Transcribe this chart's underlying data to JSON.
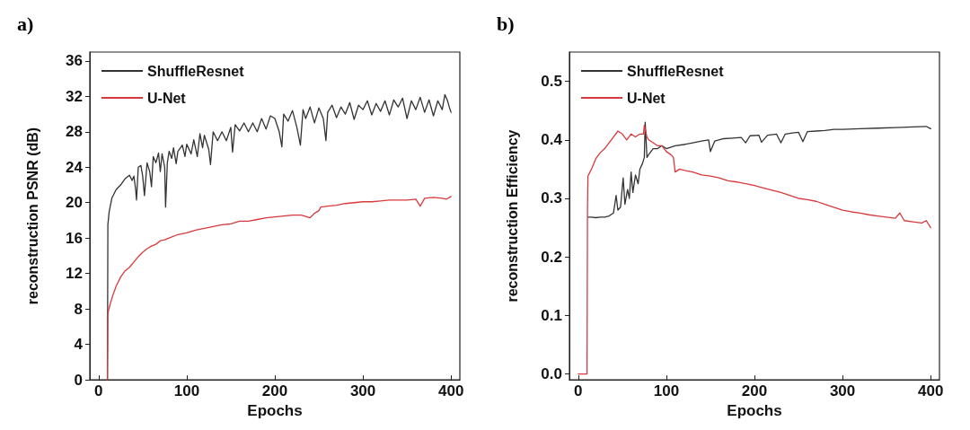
{
  "chart_data": [
    {
      "type": "line",
      "title": "a)",
      "xlabel": "Epochs",
      "ylabel": "reconstruction PSNR (dB)",
      "xlim": [
        -10,
        410
      ],
      "xticks": [
        0,
        100,
        200,
        300,
        400
      ],
      "ylim": [
        0,
        37
      ],
      "yticks": [
        0,
        4,
        8,
        12,
        16,
        20,
        24,
        28,
        32,
        36
      ],
      "legend": "top left",
      "marker": "none",
      "line_style": "solid",
      "series": [
        {
          "name": "ShuffleResnet",
          "color": "#333333",
          "x": [
            10,
            10.5,
            12,
            15,
            20,
            25,
            30,
            35,
            38,
            40,
            42,
            43,
            45,
            48,
            50,
            52,
            55,
            58,
            60,
            62,
            65,
            68,
            70,
            72,
            75,
            76,
            78,
            80,
            83,
            85,
            88,
            90,
            95,
            98,
            100,
            105,
            108,
            112,
            115,
            118,
            120,
            125,
            127,
            130,
            135,
            140,
            145,
            150,
            152,
            155,
            160,
            165,
            170,
            175,
            180,
            185,
            190,
            195,
            200,
            205,
            208,
            210,
            215,
            220,
            225,
            229,
            232,
            235,
            240,
            245,
            250,
            255,
            258,
            260,
            265,
            270,
            275,
            280,
            285,
            290,
            295,
            300,
            305,
            310,
            315,
            320,
            325,
            330,
            335,
            340,
            345,
            350,
            355,
            360,
            365,
            370,
            375,
            380,
            385,
            390,
            393,
            396,
            398,
            400
          ],
          "values": [
            0,
            17.5,
            19,
            20.5,
            21.5,
            22,
            22.7,
            23.1,
            22.5,
            23,
            21.5,
            20.3,
            24,
            24.2,
            23,
            20.8,
            24.5,
            23.5,
            21.8,
            25.2,
            24.5,
            25.6,
            23.5,
            25.5,
            24,
            19.5,
            24.5,
            25.8,
            25,
            26.2,
            24.4,
            25.8,
            26.5,
            25.2,
            26.6,
            25.5,
            27.1,
            25.2,
            27.8,
            26.2,
            27.6,
            26,
            24.3,
            28,
            27,
            28,
            27,
            28.5,
            25.7,
            28.8,
            28.1,
            29,
            28,
            29,
            28,
            29.5,
            28.3,
            29.8,
            29.5,
            28,
            26.3,
            30,
            29.2,
            30.4,
            28.5,
            26.5,
            30.5,
            29.5,
            30.8,
            29,
            30.7,
            29.5,
            27,
            30.2,
            31,
            29.6,
            30.8,
            30,
            31.3,
            29.4,
            31,
            30.5,
            31.5,
            29.9,
            31.2,
            30.3,
            31.5,
            29.9,
            31.6,
            30.8,
            31.8,
            29.5,
            31.5,
            30.5,
            31.9,
            30.2,
            31.6,
            29.8,
            31.5,
            30.5,
            32.2,
            31.5,
            30.8,
            30.2
          ]
        },
        {
          "name": "U-Net",
          "color": "#d9393c",
          "x": [
            10,
            10.5,
            13,
            16,
            20,
            25,
            30,
            35,
            40,
            45,
            50,
            55,
            60,
            65,
            70,
            75,
            80,
            90,
            100,
            110,
            120,
            130,
            140,
            150,
            160,
            170,
            180,
            190,
            200,
            210,
            220,
            230,
            240,
            245,
            250,
            252,
            260,
            270,
            280,
            290,
            300,
            310,
            320,
            330,
            340,
            350,
            360,
            365,
            370,
            380,
            390,
            395,
            400
          ],
          "values": [
            0,
            7.5,
            8.5,
            9.5,
            10.6,
            11.6,
            12.3,
            12.7,
            13.3,
            13.9,
            14.4,
            14.8,
            15.1,
            15.3,
            15.7,
            15.8,
            16,
            16.4,
            16.6,
            16.9,
            17.1,
            17.3,
            17.5,
            17.6,
            17.9,
            17.9,
            18.1,
            18.3,
            18.4,
            18.5,
            18.6,
            18.6,
            18.3,
            18.8,
            19.1,
            19.5,
            19.6,
            19.7,
            19.9,
            20,
            20.1,
            20.1,
            20.2,
            20.3,
            20.3,
            20.3,
            20.4,
            19.6,
            20.5,
            20.6,
            20.5,
            20.4,
            20.7
          ]
        }
      ]
    },
    {
      "type": "line",
      "title": "b)",
      "xlabel": "Epochs",
      "ylabel": "reconstruction Efficiency",
      "xlim": [
        -10,
        410
      ],
      "xticks": [
        0,
        100,
        200,
        300,
        400
      ],
      "ylim": [
        -0.01,
        0.55
      ],
      "yticks": [
        {
          "value": 0,
          "label": "0.0"
        },
        0.1,
        0.2,
        0.3,
        0.4,
        0.5
      ],
      "legend": "top left",
      "marker": "none",
      "line_style": "solid",
      "series": [
        {
          "name": "ShuffleResnet",
          "color": "#333333",
          "x": [
            11,
            15,
            20,
            25,
            30,
            35,
            40,
            43,
            45,
            48,
            51,
            53,
            56,
            58,
            60,
            62,
            65,
            68,
            70,
            73,
            75,
            76,
            78,
            80,
            85,
            90,
            95,
            100,
            110,
            120,
            130,
            140,
            148,
            150,
            155,
            165,
            175,
            185,
            190,
            195,
            205,
            208,
            215,
            225,
            230,
            235,
            245,
            250,
            255,
            260,
            270,
            280,
            290,
            300,
            320,
            340,
            360,
            380,
            395,
            400
          ],
          "values": [
            0.268,
            0.268,
            0.267,
            0.268,
            0.268,
            0.27,
            0.275,
            0.305,
            0.28,
            0.285,
            0.335,
            0.29,
            0.315,
            0.3,
            0.345,
            0.31,
            0.34,
            0.325,
            0.35,
            0.36,
            0.37,
            0.43,
            0.37,
            0.375,
            0.385,
            0.385,
            0.39,
            0.385,
            0.39,
            0.392,
            0.395,
            0.398,
            0.4,
            0.38,
            0.398,
            0.402,
            0.403,
            0.404,
            0.395,
            0.407,
            0.408,
            0.396,
            0.408,
            0.41,
            0.395,
            0.41,
            0.412,
            0.413,
            0.397,
            0.414,
            0.415,
            0.416,
            0.418,
            0.418,
            0.419,
            0.42,
            0.421,
            0.422,
            0.423,
            0.419
          ]
        },
        {
          "name": "U-Net",
          "color": "#d9393c",
          "x": [
            0,
            10,
            10.5,
            11,
            15,
            20,
            25,
            30,
            35,
            40,
            45,
            50,
            55,
            60,
            65,
            70,
            74,
            75,
            78,
            80,
            85,
            90,
            95,
            100,
            105,
            108,
            110,
            115,
            120,
            130,
            140,
            150,
            160,
            170,
            180,
            190,
            200,
            210,
            220,
            230,
            240,
            250,
            260,
            270,
            280,
            290,
            300,
            310,
            320,
            330,
            340,
            350,
            360,
            365,
            370,
            380,
            390,
            395,
            400
          ],
          "values": [
            0,
            0,
            0.28,
            0.338,
            0.35,
            0.368,
            0.378,
            0.385,
            0.395,
            0.405,
            0.415,
            0.41,
            0.4,
            0.41,
            0.405,
            0.41,
            0.41,
            0.425,
            0.405,
            0.4,
            0.395,
            0.39,
            0.39,
            0.38,
            0.375,
            0.37,
            0.345,
            0.35,
            0.348,
            0.345,
            0.34,
            0.338,
            0.335,
            0.33,
            0.328,
            0.325,
            0.322,
            0.318,
            0.314,
            0.31,
            0.305,
            0.3,
            0.298,
            0.295,
            0.29,
            0.285,
            0.28,
            0.277,
            0.275,
            0.272,
            0.27,
            0.268,
            0.266,
            0.275,
            0.262,
            0.26,
            0.258,
            0.262,
            0.25
          ]
        }
      ]
    }
  ]
}
